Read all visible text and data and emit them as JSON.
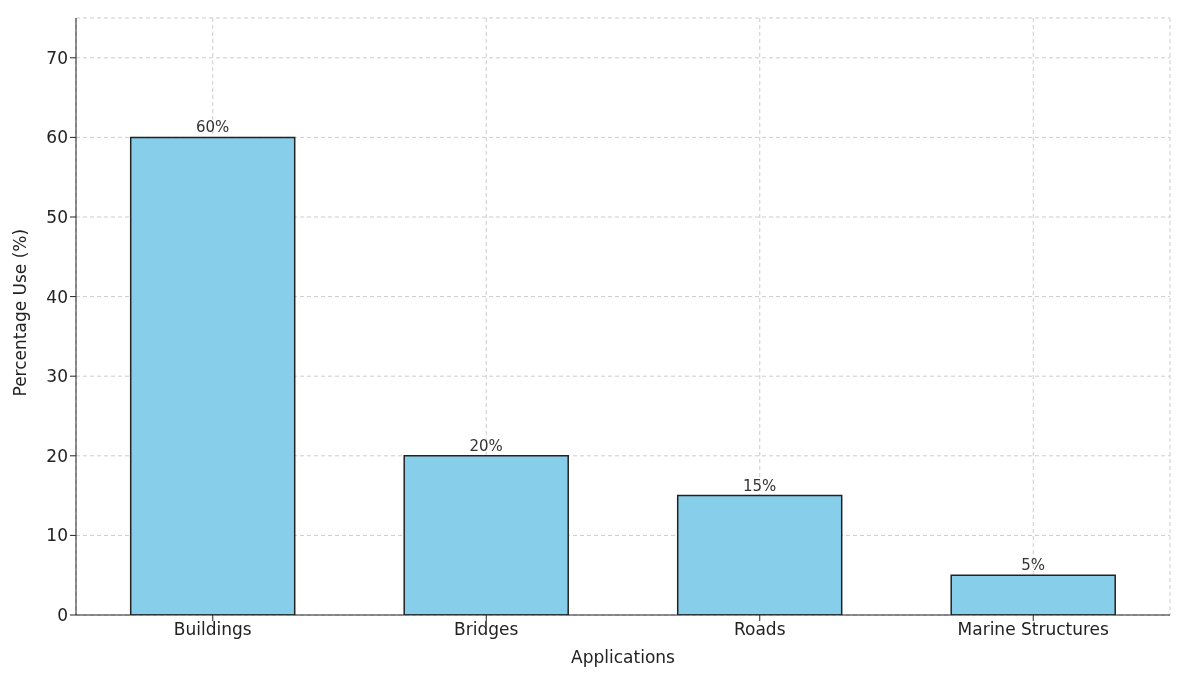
{
  "chart_data": {
    "type": "bar",
    "xlabel": "Applications",
    "ylabel": "Percentage Use (%)",
    "categories": [
      "Buildings",
      "Bridges",
      "Roads",
      "Marine Structures"
    ],
    "values": [
      60,
      20,
      15,
      5
    ],
    "value_labels": [
      "60%",
      "20%",
      "15%",
      "5%"
    ],
    "color": "#87ceeb",
    "ylim": [
      0,
      75
    ],
    "yticks": [
      0,
      10,
      20,
      30,
      40,
      50,
      60,
      70
    ],
    "grid": true
  }
}
